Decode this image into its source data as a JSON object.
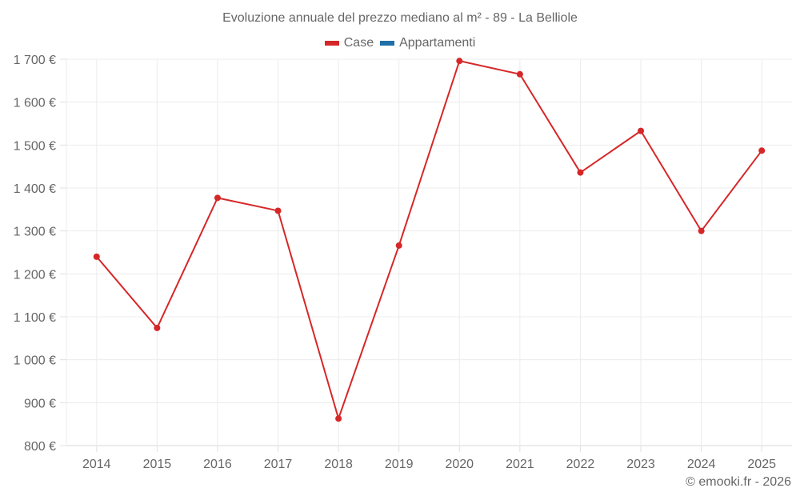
{
  "chart_data": {
    "type": "line",
    "title": "Evoluzione annuale del prezzo mediano al m² - 89 - La Belliole",
    "xlabel": "",
    "ylabel": "",
    "categories": [
      "2014",
      "2015",
      "2016",
      "2017",
      "2018",
      "2019",
      "2020",
      "2021",
      "2022",
      "2023",
      "2024",
      "2025"
    ],
    "series": [
      {
        "name": "Case",
        "color": "#d62728",
        "values": [
          1240,
          1074,
          1377,
          1347,
          863,
          1266,
          1696,
          1665,
          1436,
          1533,
          1300,
          1487
        ]
      },
      {
        "name": "Appartamenti",
        "color": "#1f6fa8",
        "values": []
      }
    ],
    "ylim": [
      800,
      1700
    ],
    "yticks": [
      800,
      900,
      1000,
      1100,
      1200,
      1300,
      1400,
      1500,
      1600,
      1700
    ],
    "ytick_labels": [
      "800 €",
      "900 €",
      "1 000 €",
      "1 100 €",
      "1 200 €",
      "1 300 €",
      "1 400 €",
      "1 500 €",
      "1 600 €",
      "1 700 €"
    ],
    "grid": true,
    "legend_position": "top"
  },
  "legend": {
    "items": [
      {
        "label": "Case",
        "color": "#d62728"
      },
      {
        "label": "Appartamenti",
        "color": "#1f6fa8"
      }
    ]
  },
  "footer": {
    "credit": "© emooki.fr - 2026"
  }
}
